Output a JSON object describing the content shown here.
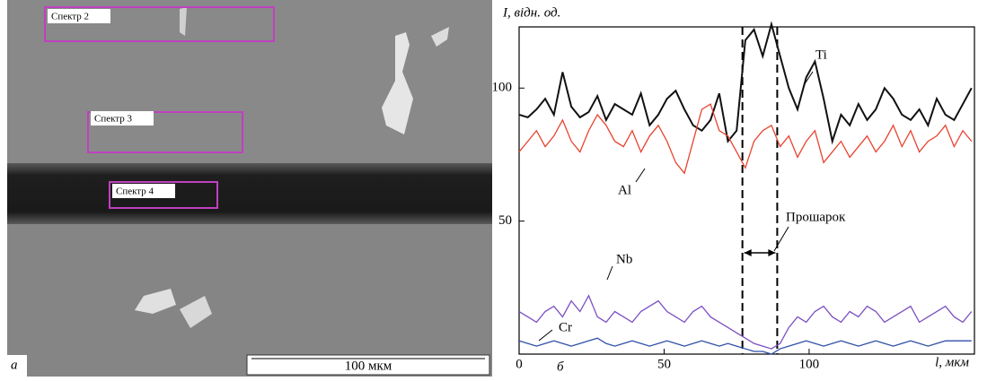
{
  "figure": {
    "panel_a": {
      "label": "а",
      "spectra": [
        "Спектр 2",
        "Спектр 3",
        "Спектр 4"
      ],
      "scale_bar": "100 мкм"
    }
  },
  "chart_data": {
    "type": "line",
    "panel_label": "б",
    "y_label": "I, відн. од.",
    "x_label": "l, мкм",
    "xlim": [
      0,
      157
    ],
    "ylim": [
      0,
      123
    ],
    "xticks": [
      0,
      50,
      100
    ],
    "yticks": [
      50,
      100
    ],
    "annotation": "Прошарок",
    "vlines": [
      77,
      89
    ],
    "x": [
      0,
      3,
      6,
      9,
      12,
      15,
      18,
      21,
      24,
      27,
      30,
      33,
      36,
      39,
      42,
      45,
      48,
      51,
      54,
      57,
      60,
      63,
      66,
      69,
      72,
      75,
      78,
      81,
      84,
      87,
      90,
      93,
      96,
      99,
      102,
      105,
      108,
      111,
      114,
      117,
      120,
      123,
      126,
      129,
      132,
      135,
      138,
      141,
      144,
      147,
      150,
      153,
      156
    ],
    "series": [
      {
        "name": "Ti",
        "color": "#111111",
        "values": [
          90,
          89,
          92,
          96,
          90,
          106,
          93,
          89,
          91,
          97,
          88,
          94,
          92,
          90,
          98,
          86,
          90,
          96,
          99,
          92,
          86,
          84,
          88,
          98,
          80,
          84,
          118,
          122,
          112,
          124,
          112,
          100,
          92,
          104,
          110,
          96,
          80,
          90,
          86,
          94,
          88,
          92,
          100,
          96,
          90,
          88,
          92,
          86,
          96,
          90,
          88,
          94,
          100
        ]
      },
      {
        "name": "Al",
        "color": "#e8432e",
        "values": [
          76,
          80,
          84,
          78,
          82,
          88,
          80,
          76,
          84,
          90,
          86,
          80,
          78,
          84,
          76,
          82,
          86,
          80,
          72,
          68,
          80,
          92,
          94,
          84,
          82,
          76,
          70,
          80,
          84,
          86,
          78,
          82,
          74,
          80,
          84,
          72,
          76,
          80,
          74,
          78,
          82,
          76,
          80,
          86,
          78,
          84,
          76,
          80,
          82,
          86,
          78,
          84,
          80
        ]
      },
      {
        "name": "Nb",
        "color": "#7a4fc0",
        "values": [
          16,
          14,
          12,
          16,
          18,
          14,
          20,
          16,
          22,
          14,
          12,
          16,
          14,
          12,
          16,
          18,
          20,
          16,
          14,
          12,
          16,
          18,
          14,
          12,
          10,
          8,
          6,
          4,
          3,
          2,
          4,
          10,
          14,
          12,
          16,
          18,
          14,
          12,
          16,
          14,
          18,
          16,
          12,
          14,
          16,
          18,
          12,
          14,
          16,
          18,
          14,
          12,
          16
        ]
      },
      {
        "name": "Cr",
        "color": "#2f4fa8",
        "values": [
          5,
          4,
          3,
          4,
          5,
          4,
          3,
          4,
          5,
          6,
          4,
          3,
          4,
          5,
          4,
          3,
          4,
          5,
          4,
          3,
          4,
          5,
          4,
          3,
          4,
          3,
          2,
          1,
          1,
          0,
          2,
          3,
          4,
          5,
          4,
          3,
          4,
          5,
          4,
          3,
          4,
          5,
          4,
          3,
          4,
          5,
          4,
          3,
          4,
          5,
          5,
          5,
          5
        ]
      }
    ]
  }
}
